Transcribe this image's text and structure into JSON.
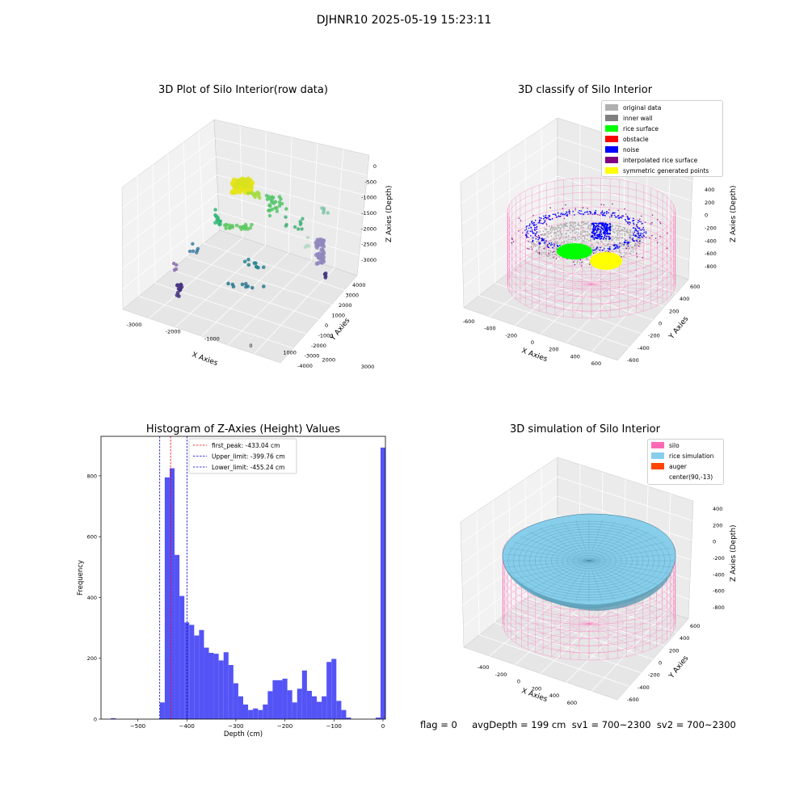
{
  "suptitle": "DJHNR10 2025-05-19 15:23:11",
  "colors": {
    "gray_data": "#b0b0b0",
    "inner_wall": "#808080",
    "rice_surface": "#00ff00",
    "obstacle": "#ff0000",
    "noise": "#0000ff",
    "interp": "#800080",
    "symmetric": "#ffff00",
    "silo": "#ff69b4",
    "rice_sim": "#87ceeb",
    "auger": "#ff4500",
    "hist_bar": "#4b4bf5"
  },
  "panels": {
    "raw": {
      "title": "3D Plot of Silo Interior(row data)",
      "xlabel": "X Axies",
      "ylabel": "Y Axies",
      "zlabel": "Z Axies (Depth)",
      "x_ticks": [
        "-3000",
        "-2000",
        "-1000",
        "0",
        "1000",
        "2000",
        "3000"
      ],
      "y_ticks": [
        "-4000",
        "-3000",
        "-2000",
        "-1000",
        "0",
        "1000",
        "2000",
        "3000",
        "4000"
      ],
      "z_ticks": [
        "0",
        "-500",
        "-1000",
        "-1500",
        "-2000",
        "-2500",
        "-3000"
      ]
    },
    "classify": {
      "title": "3D classify of Silo Interior",
      "xlabel": "X Axies",
      "ylabel": "Y Axies",
      "zlabel": "Z Axies (Depth)",
      "x_ticks": [
        "-600",
        "-400",
        "-200",
        "0",
        "200",
        "400",
        "600"
      ],
      "y_ticks": [
        "-600",
        "-400",
        "-200",
        "0",
        "200",
        "400",
        "600"
      ],
      "z_ticks": [
        "400",
        "200",
        "0",
        "-200",
        "-400",
        "-600",
        "-800"
      ],
      "legend": [
        {
          "label": "original data",
          "color": "#b0b0b0"
        },
        {
          "label": "inner wall",
          "color": "#808080"
        },
        {
          "label": "rice surface",
          "color": "#00ff00"
        },
        {
          "label": "obstacle",
          "color": "#ff0000"
        },
        {
          "label": "noise",
          "color": "#0000ff"
        },
        {
          "label": "interpolated rice surface",
          "color": "#800080"
        },
        {
          "label": "symmetric generated points",
          "color": "#ffff00"
        }
      ]
    },
    "simulation": {
      "title": "3D simulation of Silo Interior",
      "xlabel": "X Axies",
      "ylabel": "Y Axies",
      "zlabel": "Z Axies (Depth)",
      "x_ticks": [
        "-400",
        "-200",
        "0",
        "200",
        "400",
        "600"
      ],
      "y_ticks": [
        "-600",
        "-400",
        "-200",
        "0",
        "200",
        "400",
        "600"
      ],
      "z_ticks": [
        "400",
        "200",
        "0",
        "-200",
        "-400",
        "-600",
        "-800"
      ],
      "legend": [
        {
          "label": "silo",
          "color": "#ff69b4"
        },
        {
          "label": "rice simulation",
          "color": "#87ceeb"
        },
        {
          "label": "auger",
          "color": "#ff4500"
        },
        {
          "label": "center(90,-13)",
          "color": ""
        }
      ]
    }
  },
  "status_text": "flag = 0     avgDepth = 199 cm  sv1 = 700~2300  sv2 = 700~2300",
  "chart_data": [
    {
      "type": "bar",
      "title": "Histogram of Z-Axies (Height) Values",
      "xlabel": "Depth (cm)",
      "ylabel": "Frequency",
      "xlim": [
        -575,
        5
      ],
      "ylim": [
        0,
        930
      ],
      "x_ticks": [
        -500,
        -400,
        -300,
        -200,
        -100,
        0
      ],
      "y_ticks": [
        0,
        200,
        400,
        600,
        800
      ],
      "bin_width": 10,
      "bin_left_edges": [
        -555,
        -545,
        -535,
        -525,
        -515,
        -505,
        -495,
        -485,
        -475,
        -465,
        -455,
        -445,
        -435,
        -425,
        -415,
        -405,
        -395,
        -385,
        -375,
        -365,
        -355,
        -345,
        -335,
        -325,
        -315,
        -305,
        -295,
        -285,
        -275,
        -265,
        -255,
        -245,
        -235,
        -225,
        -215,
        -205,
        -195,
        -185,
        -175,
        -165,
        -155,
        -145,
        -135,
        -125,
        -115,
        -105,
        -95,
        -85,
        -75,
        -65,
        -55,
        -45,
        -35,
        -25,
        -15,
        -5
      ],
      "values": [
        3,
        0,
        0,
        0,
        0,
        0,
        0,
        0,
        0,
        0,
        55,
        795,
        825,
        540,
        405,
        318,
        310,
        275,
        293,
        235,
        218,
        215,
        193,
        220,
        178,
        118,
        75,
        48,
        30,
        35,
        30,
        48,
        92,
        128,
        128,
        133,
        95,
        55,
        100,
        160,
        93,
        75,
        57,
        75,
        188,
        198,
        60,
        30,
        5,
        0,
        0,
        0,
        0,
        0,
        5,
        893
      ],
      "vlines": [
        {
          "label": "first_peak: -433.04 cm",
          "x": -433.04,
          "color": "#ff0000"
        },
        {
          "label": "Upper_limit: -399.76 cm",
          "x": -399.76,
          "color": "#0000cc"
        },
        {
          "label": "Lower_limit: -455.24 cm",
          "x": -455.24,
          "color": "#0000cc"
        }
      ],
      "legend_position": "upper-center"
    }
  ]
}
